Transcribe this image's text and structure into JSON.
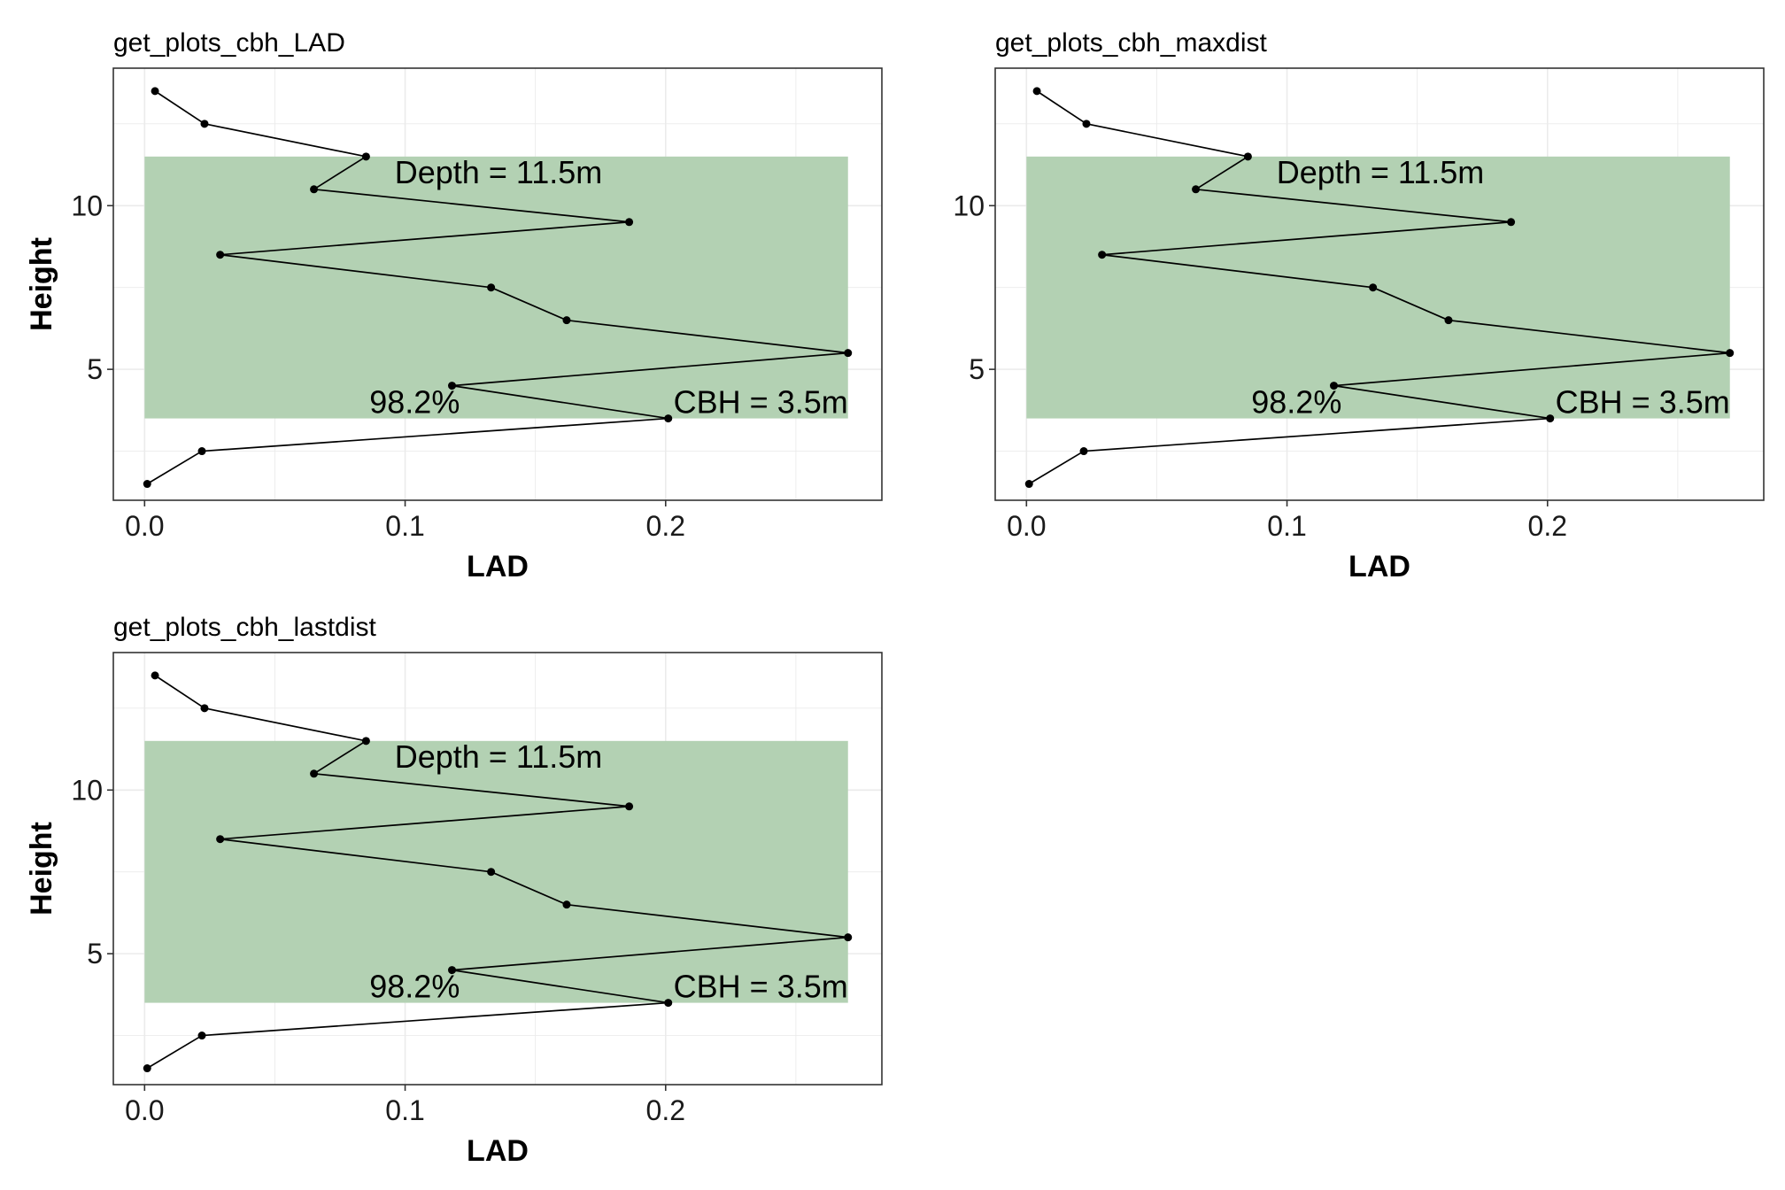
{
  "chart_data": [
    {
      "type": "line",
      "title": "get_plots_cbh_LAD",
      "xlabel": "LAD",
      "ylabel": "Height",
      "xlim": [
        -0.012,
        0.283
      ],
      "ylim": [
        1.0,
        14.2
      ],
      "xticks": [
        0.0,
        0.1,
        0.2
      ],
      "xtick_labels": [
        "0.0",
        "0.1",
        "0.2"
      ],
      "yticks": [
        5,
        10
      ],
      "ytick_labels": [
        "5",
        "10"
      ],
      "grid": true,
      "points": [
        {
          "x": 0.001,
          "y": 1.5
        },
        {
          "x": 0.022,
          "y": 2.5
        },
        {
          "x": 0.201,
          "y": 3.5
        },
        {
          "x": 0.118,
          "y": 4.5
        },
        {
          "x": 0.27,
          "y": 5.5
        },
        {
          "x": 0.162,
          "y": 6.5
        },
        {
          "x": 0.133,
          "y": 7.5
        },
        {
          "x": 0.029,
          "y": 8.5
        },
        {
          "x": 0.186,
          "y": 9.5
        },
        {
          "x": 0.065,
          "y": 10.5
        },
        {
          "x": 0.085,
          "y": 11.5
        },
        {
          "x": 0.023,
          "y": 12.5
        },
        {
          "x": 0.004,
          "y": 13.5
        }
      ],
      "band": {
        "x": [
          0.0,
          0.27
        ],
        "y": [
          3.5,
          11.5
        ],
        "color": "#b3d1b3"
      },
      "annotations": {
        "depth": "Depth = 11.5m",
        "percent": "98.2%",
        "cbh": "CBH = 3.5m"
      }
    },
    {
      "type": "line",
      "title": "get_plots_cbh_maxdist",
      "xlabel": "LAD",
      "ylabel": "Height",
      "xlim": [
        -0.012,
        0.283
      ],
      "ylim": [
        1.0,
        14.2
      ],
      "xticks": [
        0.0,
        0.1,
        0.2
      ],
      "xtick_labels": [
        "0.0",
        "0.1",
        "0.2"
      ],
      "yticks": [
        5,
        10
      ],
      "ytick_labels": [
        "5",
        "10"
      ],
      "grid": true,
      "points": [
        {
          "x": 0.001,
          "y": 1.5
        },
        {
          "x": 0.022,
          "y": 2.5
        },
        {
          "x": 0.201,
          "y": 3.5
        },
        {
          "x": 0.118,
          "y": 4.5
        },
        {
          "x": 0.27,
          "y": 5.5
        },
        {
          "x": 0.162,
          "y": 6.5
        },
        {
          "x": 0.133,
          "y": 7.5
        },
        {
          "x": 0.029,
          "y": 8.5
        },
        {
          "x": 0.186,
          "y": 9.5
        },
        {
          "x": 0.065,
          "y": 10.5
        },
        {
          "x": 0.085,
          "y": 11.5
        },
        {
          "x": 0.023,
          "y": 12.5
        },
        {
          "x": 0.004,
          "y": 13.5
        }
      ],
      "band": {
        "x": [
          0.0,
          0.27
        ],
        "y": [
          3.5,
          11.5
        ],
        "color": "#b3d1b3"
      },
      "annotations": {
        "depth": "Depth = 11.5m",
        "percent": "98.2%",
        "cbh": "CBH = 3.5m"
      }
    },
    {
      "type": "line",
      "title": "get_plots_cbh_lastdist",
      "xlabel": "LAD",
      "ylabel": "Height",
      "xlim": [
        -0.012,
        0.283
      ],
      "ylim": [
        1.0,
        14.2
      ],
      "xticks": [
        0.0,
        0.1,
        0.2
      ],
      "xtick_labels": [
        "0.0",
        "0.1",
        "0.2"
      ],
      "yticks": [
        5,
        10
      ],
      "ytick_labels": [
        "5",
        "10"
      ],
      "grid": true,
      "points": [
        {
          "x": 0.001,
          "y": 1.5
        },
        {
          "x": 0.022,
          "y": 2.5
        },
        {
          "x": 0.201,
          "y": 3.5
        },
        {
          "x": 0.118,
          "y": 4.5
        },
        {
          "x": 0.27,
          "y": 5.5
        },
        {
          "x": 0.162,
          "y": 6.5
        },
        {
          "x": 0.133,
          "y": 7.5
        },
        {
          "x": 0.029,
          "y": 8.5
        },
        {
          "x": 0.186,
          "y": 9.5
        },
        {
          "x": 0.065,
          "y": 10.5
        },
        {
          "x": 0.085,
          "y": 11.5
        },
        {
          "x": 0.023,
          "y": 12.5
        },
        {
          "x": 0.004,
          "y": 13.5
        }
      ],
      "band": {
        "x": [
          0.0,
          0.27
        ],
        "y": [
          3.5,
          11.5
        ],
        "color": "#b3d1b3"
      },
      "annotations": {
        "depth": "Depth = 11.5m",
        "percent": "98.2%",
        "cbh": "CBH = 3.5m"
      }
    }
  ]
}
